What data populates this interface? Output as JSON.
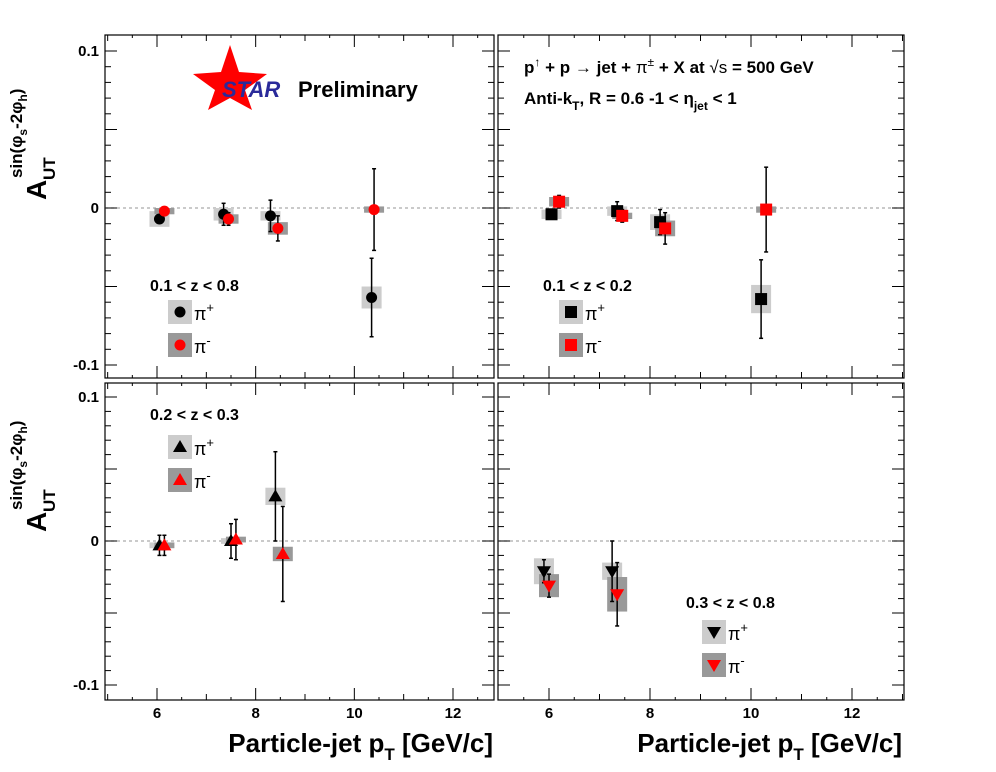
{
  "chart_data": {
    "type": "scatter",
    "title": "",
    "xlabel": "Particle-jet p_T [GeV/c]",
    "ylabel": "A_UT^sin(phi_s-2phi_h)",
    "ylabel_main": "A",
    "ylabel_sub": "UT",
    "ylabel_sup": "sin(φ",
    "ylabel_sup_s": "s",
    "ylabel_sup_mid": "-2φ",
    "ylabel_sup_h": "h",
    "ylabel_sup_end": ")",
    "xlim": [
      5,
      13
    ],
    "ylim": [
      -0.11,
      0.11
    ],
    "xticks": [
      "6",
      "8",
      "10",
      "12"
    ],
    "yticks": [
      "0.1",
      "0",
      "-0.1"
    ],
    "grid": false,
    "reference_line": 0,
    "logo": "STAR",
    "preliminary": "Preliminary",
    "process": "p↑ + p → jet + π± + X at √s = 500 GeV",
    "algorithm": "Anti-kT, R = 0.6    -1 < ηjet < 1",
    "info_line1": {
      "p": "p",
      "up": "↑",
      "a": " + p ",
      "arrow": "→",
      "b": " jet + ",
      "pi": "π",
      "pm": "±",
      "c": " + X at ",
      "sqrt": "√s",
      "d": " = 500 GeV"
    },
    "info_line2": {
      "a": "Anti-k",
      "T": "T",
      "b": ", R = 0.6    -1 < η",
      "jet": "jet",
      "c": " < 1"
    },
    "panels": [
      {
        "z_label": "0.1 < z < 0.8",
        "marker": "circle",
        "legend": [
          {
            "label": "π",
            "sup": "+"
          },
          {
            "label": "π",
            "sup": "-"
          }
        ],
        "series": [
          {
            "name": "π+",
            "color": "#000000",
            "points": [
              {
                "x": 6.05,
                "y": -0.007,
                "err": 0.0,
                "sys": 0.005
              },
              {
                "x": 7.35,
                "y": -0.004,
                "err": 0.007,
                "sys": 0.004
              },
              {
                "x": 8.3,
                "y": -0.005,
                "err": 0.01,
                "sys": 0.003
              },
              {
                "x": 10.35,
                "y": -0.057,
                "err": 0.025,
                "sys": 0.007
              }
            ]
          },
          {
            "name": "π-",
            "color": "#ff0000",
            "points": [
              {
                "x": 6.15,
                "y": -0.002,
                "err": 0.0,
                "sys": 0.002
              },
              {
                "x": 7.45,
                "y": -0.007,
                "err": 0.004,
                "sys": 0.003
              },
              {
                "x": 8.45,
                "y": -0.013,
                "err": 0.008,
                "sys": 0.004
              },
              {
                "x": 10.4,
                "y": -0.001,
                "err": 0.026,
                "sys": 0.002
              }
            ]
          }
        ]
      },
      {
        "z_label": "0.1 < z < 0.2",
        "marker": "square",
        "legend": [
          {
            "label": "π",
            "sup": "+"
          },
          {
            "label": "π",
            "sup": "-"
          }
        ],
        "series": [
          {
            "name": "π+",
            "color": "#000000",
            "points": [
              {
                "x": 6.05,
                "y": -0.004,
                "err": 0.003,
                "sys": 0.003
              },
              {
                "x": 7.35,
                "y": -0.002,
                "err": 0.006,
                "sys": 0.003
              },
              {
                "x": 8.2,
                "y": -0.009,
                "err": 0.008,
                "sys": 0.005
              },
              {
                "x": 10.2,
                "y": -0.058,
                "err": 0.025,
                "sys": 0.009
              }
            ]
          },
          {
            "name": "π-",
            "color": "#ff0000",
            "points": [
              {
                "x": 6.2,
                "y": 0.004,
                "err": 0.004,
                "sys": 0.003
              },
              {
                "x": 7.45,
                "y": -0.005,
                "err": 0.004,
                "sys": 0.002
              },
              {
                "x": 8.3,
                "y": -0.013,
                "err": 0.01,
                "sys": 0.005
              },
              {
                "x": 10.3,
                "y": -0.001,
                "err": 0.027,
                "sys": 0.002
              }
            ]
          }
        ]
      },
      {
        "z_label": "0.2 < z < 0.3",
        "marker": "triangle-up",
        "legend": [
          {
            "label": "π",
            "sup": "+"
          },
          {
            "label": "π",
            "sup": "-"
          }
        ],
        "series": [
          {
            "name": "π+",
            "color": "#000000",
            "points": [
              {
                "x": 6.05,
                "y": -0.003,
                "err": 0.007,
                "sys": 0.002
              },
              {
                "x": 7.5,
                "y": 0.0,
                "err": 0.012,
                "sys": 0.002
              },
              {
                "x": 8.4,
                "y": 0.031,
                "err": 0.031,
                "sys": 0.006
              }
            ]
          },
          {
            "name": "π-",
            "color": "#ff0000",
            "points": [
              {
                "x": 6.15,
                "y": -0.003,
                "err": 0.007,
                "sys": 0.002
              },
              {
                "x": 7.6,
                "y": 0.001,
                "err": 0.014,
                "sys": 0.002
              },
              {
                "x": 8.55,
                "y": -0.009,
                "err": 0.033,
                "sys": 0.005
              }
            ]
          }
        ]
      },
      {
        "z_label": "0.3 < z < 0.8",
        "marker": "triangle-down",
        "legend": [
          {
            "label": "π",
            "sup": "+"
          },
          {
            "label": "π",
            "sup": "-"
          }
        ],
        "series": [
          {
            "name": "π+",
            "color": "#000000",
            "points": [
              {
                "x": 5.9,
                "y": -0.021,
                "err": 0.008,
                "sys": 0.009
              },
              {
                "x": 7.25,
                "y": -0.021,
                "err": 0.021,
                "sys": 0.006
              }
            ]
          },
          {
            "name": "π-",
            "color": "#ff0000",
            "points": [
              {
                "x": 6.0,
                "y": -0.031,
                "err": 0.008,
                "sys": 0.008
              },
              {
                "x": 7.35,
                "y": -0.037,
                "err": 0.022,
                "sys": 0.012
              }
            ]
          }
        ]
      }
    ]
  }
}
